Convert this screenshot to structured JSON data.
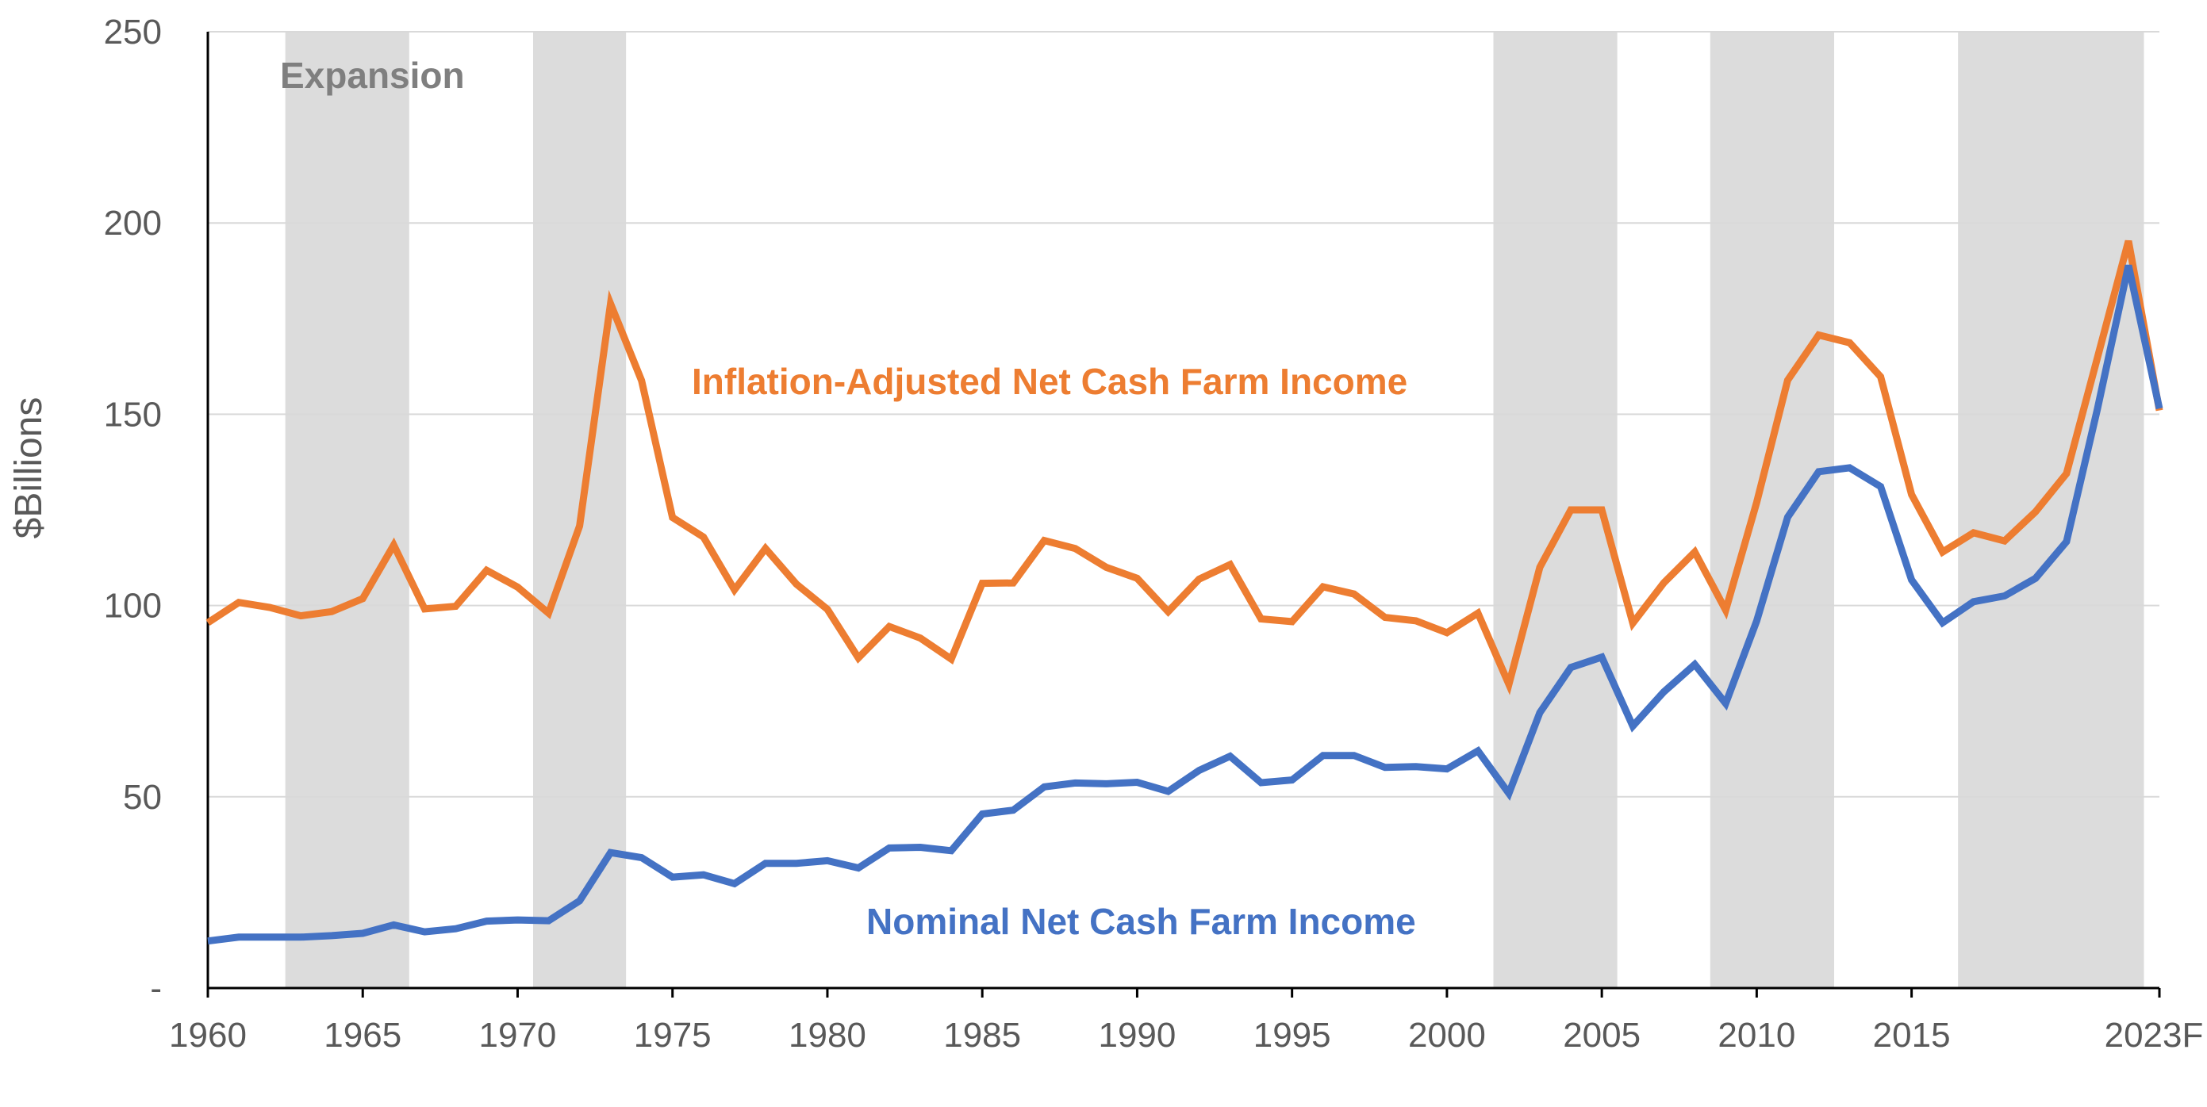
{
  "chart_data": {
    "type": "line",
    "title": "",
    "xlabel": "",
    "ylabel": "$Billions",
    "xlim": [
      1960,
      2023
    ],
    "ylim": [
      0,
      250
    ],
    "y_ticks": [
      0,
      50,
      100,
      150,
      200,
      250
    ],
    "y_tick_labels": [
      "-",
      "50",
      "100",
      "150",
      "200",
      "250"
    ],
    "x_ticks": [
      1960,
      1965,
      1970,
      1975,
      1980,
      1985,
      1990,
      1995,
      2000,
      2005,
      2010,
      2015,
      2023
    ],
    "x_tick_labels": [
      "1960",
      "1965",
      "1970",
      "1975",
      "1980",
      "1985",
      "1990",
      "1995",
      "2000",
      "2005",
      "2010",
      "2015",
      "2023F"
    ],
    "grid": "horizontal",
    "shaded_regions": {
      "label": "Expansion",
      "ranges": [
        [
          1963,
          1967
        ],
        [
          1971,
          1974
        ],
        [
          2002,
          2006
        ],
        [
          2009,
          2013
        ],
        [
          2017,
          2023
        ]
      ],
      "color": "#dcdcdc"
    },
    "x": [
      1960,
      1961,
      1962,
      1963,
      1964,
      1965,
      1966,
      1967,
      1968,
      1969,
      1970,
      1971,
      1972,
      1973,
      1974,
      1975,
      1976,
      1977,
      1978,
      1979,
      1980,
      1981,
      1982,
      1983,
      1984,
      1985,
      1986,
      1987,
      1988,
      1989,
      1990,
      1991,
      1992,
      1993,
      1994,
      1995,
      1996,
      1997,
      1998,
      1999,
      2000,
      2001,
      2002,
      2003,
      2004,
      2005,
      2006,
      2007,
      2008,
      2009,
      2010,
      2011,
      2012,
      2013,
      2014,
      2015,
      2016,
      2017,
      2018,
      2019,
      2020,
      2021,
      2022,
      2023
    ],
    "series": [
      {
        "name": "Inflation-Adjusted Net Cash Farm Income",
        "color": "#ed7d31",
        "values": [
          95.5,
          100.8,
          99.5,
          97.3,
          98.4,
          101.8,
          115.8,
          99.1,
          99.8,
          109.2,
          104.8,
          98.0,
          120.8,
          178.9,
          158.8,
          123.0,
          117.9,
          104.1,
          114.9,
          105.6,
          99.0,
          86.3,
          94.5,
          91.5,
          86.0,
          105.8,
          105.9,
          117.0,
          114.9,
          110.0,
          107.1,
          98.4,
          106.9,
          110.7,
          96.5,
          95.8,
          104.9,
          103.0,
          96.9,
          96.0,
          92.9,
          98.0,
          79.4,
          110.0,
          125.0,
          125.0,
          95.4,
          105.9,
          114.0,
          98.8,
          127.0,
          158.9,
          170.7,
          168.7,
          159.8,
          129.0,
          114.0,
          119.0,
          116.9,
          124.5,
          134.5,
          164.8,
          195.3,
          151.0
        ]
      },
      {
        "name": "Nominal Net Cash Farm Income",
        "color": "#4472c4",
        "values": [
          12.3,
          13.3,
          13.3,
          13.3,
          13.7,
          14.3,
          16.5,
          14.7,
          15.5,
          17.5,
          17.8,
          17.6,
          22.8,
          35.4,
          34.1,
          29.0,
          29.6,
          27.3,
          32.6,
          32.6,
          33.3,
          31.4,
          36.6,
          36.8,
          35.9,
          45.5,
          46.5,
          52.6,
          53.6,
          53.4,
          53.8,
          51.4,
          56.9,
          60.6,
          53.7,
          54.4,
          60.8,
          60.8,
          57.7,
          57.9,
          57.3,
          62.0,
          50.9,
          72.0,
          83.8,
          86.5,
          68.5,
          77.4,
          84.6,
          74.4,
          96.0,
          123.1,
          135.0,
          136.0,
          131.1,
          106.7,
          95.5,
          101.0,
          102.5,
          107.1,
          116.7,
          151.4,
          188.9,
          151.5
        ]
      }
    ],
    "annotations": [
      {
        "text": "Expansion",
        "color": "#7f7f7f"
      },
      {
        "text": "Inflation-Adjusted Net Cash Farm Income",
        "color": "#ed7d31"
      },
      {
        "text": "Nominal Net Cash Farm Income",
        "color": "#4472c4"
      }
    ]
  }
}
